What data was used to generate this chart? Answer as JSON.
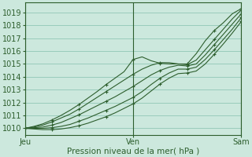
{
  "xlabel": "Pression niveau de la mer( hPa )",
  "bg_color": "#cce8dd",
  "grid_color": "#99ccbb",
  "line_color": "#2d5e2d",
  "marker_color": "#2d5e2d",
  "ylim": [
    1009.5,
    1019.8
  ],
  "xlim": [
    0,
    48
  ],
  "yticks": [
    1010,
    1011,
    1012,
    1013,
    1014,
    1015,
    1016,
    1017,
    1018,
    1019
  ],
  "xtick_positions": [
    0,
    24,
    48
  ],
  "xtick_labels": [
    "Jeu",
    "Ven",
    "Sam"
  ],
  "lines": [
    {
      "x": [
        0,
        2,
        4,
        6,
        8,
        10,
        12,
        14,
        16,
        18,
        20,
        22,
        24,
        26,
        28,
        30,
        32,
        34,
        36,
        38,
        40,
        42,
        44,
        46,
        48
      ],
      "y": [
        1010.0,
        1010.15,
        1010.35,
        1010.65,
        1011.0,
        1011.4,
        1011.85,
        1012.35,
        1012.85,
        1013.4,
        1013.9,
        1014.4,
        1015.35,
        1015.55,
        1015.25,
        1015.05,
        1015.0,
        1015.0,
        1015.0,
        1015.8,
        1016.8,
        1017.6,
        1018.2,
        1018.9,
        1019.3
      ]
    },
    {
      "x": [
        0,
        2,
        4,
        6,
        8,
        10,
        12,
        14,
        16,
        18,
        20,
        22,
        24,
        26,
        28,
        30,
        32,
        34,
        36,
        38,
        40,
        42,
        44,
        46,
        48
      ],
      "y": [
        1010.0,
        1010.1,
        1010.25,
        1010.5,
        1010.8,
        1011.1,
        1011.5,
        1011.95,
        1012.4,
        1012.85,
        1013.3,
        1013.75,
        1014.2,
        1014.6,
        1014.9,
        1015.1,
        1015.1,
        1015.0,
        1014.95,
        1015.3,
        1016.1,
        1016.9,
        1017.7,
        1018.5,
        1019.2
      ]
    },
    {
      "x": [
        0,
        2,
        4,
        6,
        8,
        10,
        12,
        14,
        16,
        18,
        20,
        22,
        24,
        26,
        28,
        30,
        32,
        34,
        36,
        38,
        40,
        42,
        44,
        46,
        48
      ],
      "y": [
        1010.0,
        1010.05,
        1010.1,
        1010.25,
        1010.45,
        1010.75,
        1011.05,
        1011.4,
        1011.75,
        1012.1,
        1012.45,
        1012.85,
        1013.25,
        1013.7,
        1014.15,
        1014.5,
        1014.75,
        1014.9,
        1014.85,
        1015.0,
        1015.7,
        1016.5,
        1017.3,
        1018.1,
        1018.9
      ]
    },
    {
      "x": [
        0,
        2,
        4,
        6,
        8,
        10,
        12,
        14,
        16,
        18,
        20,
        22,
        24,
        26,
        28,
        30,
        32,
        34,
        36,
        38,
        40,
        42,
        44,
        46,
        48
      ],
      "y": [
        1010.0,
        1010.0,
        1010.0,
        1010.05,
        1010.15,
        1010.3,
        1010.55,
        1010.8,
        1011.1,
        1011.4,
        1011.7,
        1012.05,
        1012.4,
        1012.85,
        1013.4,
        1013.9,
        1014.3,
        1014.6,
        1014.6,
        1014.75,
        1015.35,
        1016.1,
        1016.9,
        1017.7,
        1018.6
      ]
    },
    {
      "x": [
        0,
        2,
        4,
        6,
        8,
        10,
        12,
        14,
        16,
        18,
        20,
        22,
        24,
        26,
        28,
        30,
        32,
        34,
        36,
        38,
        40,
        42,
        44,
        46,
        48
      ],
      "y": [
        1010.0,
        1009.95,
        1009.9,
        1009.9,
        1009.95,
        1010.05,
        1010.2,
        1010.4,
        1010.65,
        1010.9,
        1011.2,
        1011.55,
        1011.9,
        1012.35,
        1012.9,
        1013.45,
        1013.9,
        1014.25,
        1014.3,
        1014.45,
        1015.0,
        1015.75,
        1016.55,
        1017.4,
        1018.3
      ]
    }
  ]
}
